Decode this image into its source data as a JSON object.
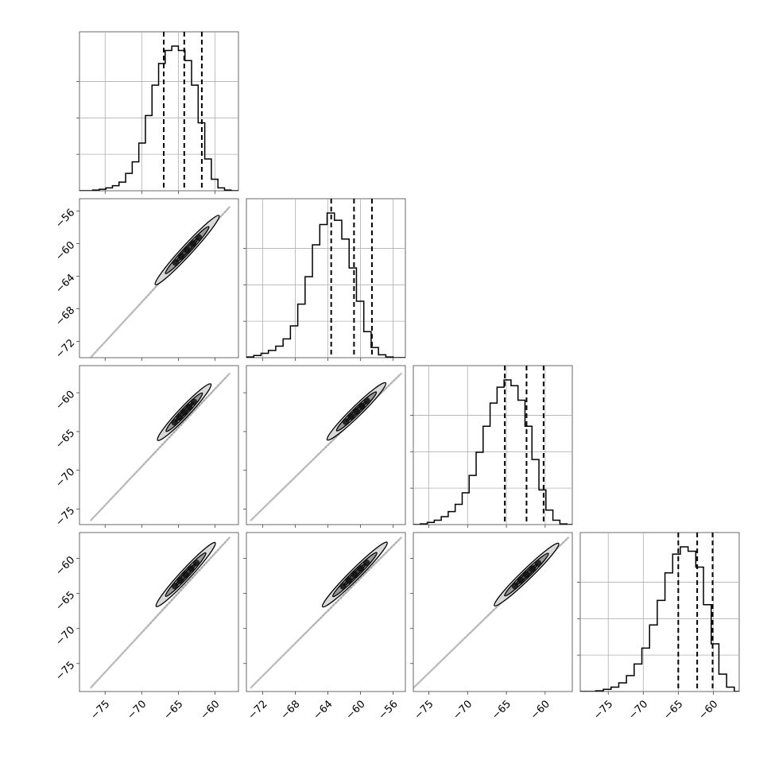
{
  "chart_data": {
    "type": "corner",
    "n_parameters": 4,
    "colors": {
      "line": "#000000",
      "grid": "#b0b0b0",
      "frame": "#444444",
      "contour_fill_light": "#d9d9d9",
      "contour_fill_mid": "#9a9a9a",
      "contour_fill_dark": "#4d4d4d"
    },
    "grid": true,
    "parameters": [
      {
        "range": [
          -78.5,
          -56.8
        ],
        "ticks": [
          -75,
          -70,
          -65,
          -60
        ],
        "tick_labels": [
          "−75",
          "−70",
          "−65",
          "−60"
        ],
        "quantiles": [
          -67.0,
          -64.2,
          -61.8
        ],
        "hist": {
          "edges": [
            -78.5,
            -77.6,
            -76.7,
            -75.8,
            -74.9,
            -74.0,
            -73.1,
            -72.2,
            -71.3,
            -70.4,
            -69.5,
            -68.6,
            -67.7,
            -66.8,
            -65.9,
            -65.0,
            -64.1,
            -63.2,
            -62.3,
            -61.4,
            -60.5,
            -59.6,
            -58.7,
            -57.8,
            -56.8
          ],
          "counts": [
            0.0,
            0.0,
            0.005,
            0.01,
            0.02,
            0.035,
            0.06,
            0.12,
            0.2,
            0.33,
            0.52,
            0.73,
            0.88,
            0.97,
            1.0,
            0.97,
            0.9,
            0.73,
            0.47,
            0.22,
            0.08,
            0.02,
            0.005,
            0.0
          ]
        }
      },
      {
        "range": [
          -74.0,
          -54.5
        ],
        "ticks": [
          -72,
          -68,
          -64,
          -60,
          -56
        ],
        "tick_labels": [
          "−72",
          "−68",
          "−64",
          "−60",
          "−56"
        ],
        "quantiles": [
          -63.6,
          -60.8,
          -58.6
        ],
        "hist": {
          "edges": [
            -74.0,
            -73.1,
            -72.2,
            -71.3,
            -70.4,
            -69.5,
            -68.6,
            -67.7,
            -66.8,
            -65.9,
            -65.0,
            -64.1,
            -63.2,
            -62.3,
            -61.4,
            -60.5,
            -59.6,
            -58.7,
            -57.8,
            -56.9,
            -56.0,
            -55.1,
            -54.5
          ],
          "counts": [
            0.005,
            0.015,
            0.03,
            0.05,
            0.08,
            0.13,
            0.22,
            0.37,
            0.56,
            0.78,
            0.92,
            1.0,
            0.95,
            0.82,
            0.62,
            0.39,
            0.18,
            0.07,
            0.02,
            0.005,
            0.0,
            0.0
          ]
        }
      },
      {
        "range": [
          -77.0,
          -56.5
        ],
        "ticks": [
          -75,
          -70,
          -65,
          -60
        ],
        "tick_labels": [
          "−75",
          "−70",
          "−65",
          "−60"
        ],
        "quantiles": [
          -65.2,
          -62.4,
          -60.2
        ],
        "hist": {
          "edges": [
            -77.0,
            -76.1,
            -75.2,
            -74.3,
            -73.4,
            -72.5,
            -71.6,
            -70.7,
            -69.8,
            -68.9,
            -68.0,
            -67.1,
            -66.2,
            -65.3,
            -64.4,
            -63.5,
            -62.6,
            -61.7,
            -60.8,
            -59.9,
            -59.0,
            -58.1,
            -57.2,
            -56.5
          ],
          "counts": [
            0.0,
            0.005,
            0.015,
            0.03,
            0.055,
            0.09,
            0.14,
            0.22,
            0.34,
            0.5,
            0.68,
            0.84,
            0.95,
            1.0,
            0.96,
            0.86,
            0.68,
            0.45,
            0.24,
            0.1,
            0.03,
            0.005,
            0.0
          ]
        }
      },
      {
        "range": [
          -79.0,
          -56.3
        ],
        "ticks": [
          -75,
          -70,
          -65,
          -60
        ],
        "tick_labels": [
          "−75",
          "−70",
          "−65",
          "−60"
        ],
        "quantiles": [
          -65.0,
          -62.3,
          -60.1
        ],
        "hist": {
          "edges": [
            -79.0,
            -77.9,
            -76.8,
            -75.7,
            -74.6,
            -73.5,
            -72.4,
            -71.3,
            -70.2,
            -69.1,
            -68.0,
            -66.9,
            -65.8,
            -64.7,
            -63.6,
            -62.5,
            -61.4,
            -60.3,
            -59.2,
            -58.1,
            -57.0,
            -56.3
          ],
          "counts": [
            0.0,
            0.0,
            0.005,
            0.015,
            0.03,
            0.06,
            0.11,
            0.19,
            0.3,
            0.46,
            0.63,
            0.82,
            0.95,
            1.0,
            0.97,
            0.86,
            0.6,
            0.33,
            0.12,
            0.03,
            0.0
          ]
        }
      }
    ],
    "pair_panels": [
      {
        "x_param": 0,
        "y_param": 1,
        "line": {
          "x": [
            -77.0,
            -58.0
          ],
          "y": [
            -74.0,
            -55.5
          ]
        },
        "contour_center": [
          -63.8,
          -60.8
        ],
        "contour_halfwidth": 4.5
      },
      {
        "x_param": 0,
        "y_param": 2,
        "line": {
          "x": [
            -77.0,
            -58.0
          ],
          "y": [
            -76.5,
            -57.5
          ]
        },
        "contour_center": [
          -64.2,
          -62.5
        ],
        "contour_halfwidth": 3.8
      },
      {
        "x_param": 1,
        "y_param": 2,
        "line": {
          "x": [
            -73.5,
            -55.0
          ],
          "y": [
            -76.5,
            -57.5
          ]
        },
        "contour_center": [
          -60.5,
          -62.4
        ],
        "contour_halfwidth": 3.8
      },
      {
        "x_param": 0,
        "y_param": 3,
        "line": {
          "x": [
            -77.0,
            -58.0
          ],
          "y": [
            -78.5,
            -57.0
          ]
        },
        "contour_center": [
          -64.0,
          -62.3
        ],
        "contour_halfwidth": 4.5
      },
      {
        "x_param": 1,
        "y_param": 3,
        "line": {
          "x": [
            -73.5,
            -55.0
          ],
          "y": [
            -78.5,
            -57.0
          ]
        },
        "contour_center": [
          -60.7,
          -62.3
        ],
        "contour_halfwidth": 4.5
      },
      {
        "x_param": 2,
        "y_param": 3,
        "line": {
          "x": [
            -77.0,
            -57.0
          ],
          "y": [
            -78.5,
            -57.0
          ]
        },
        "contour_center": [
          -62.4,
          -62.3
        ],
        "contour_halfwidth": 4.5
      }
    ]
  }
}
